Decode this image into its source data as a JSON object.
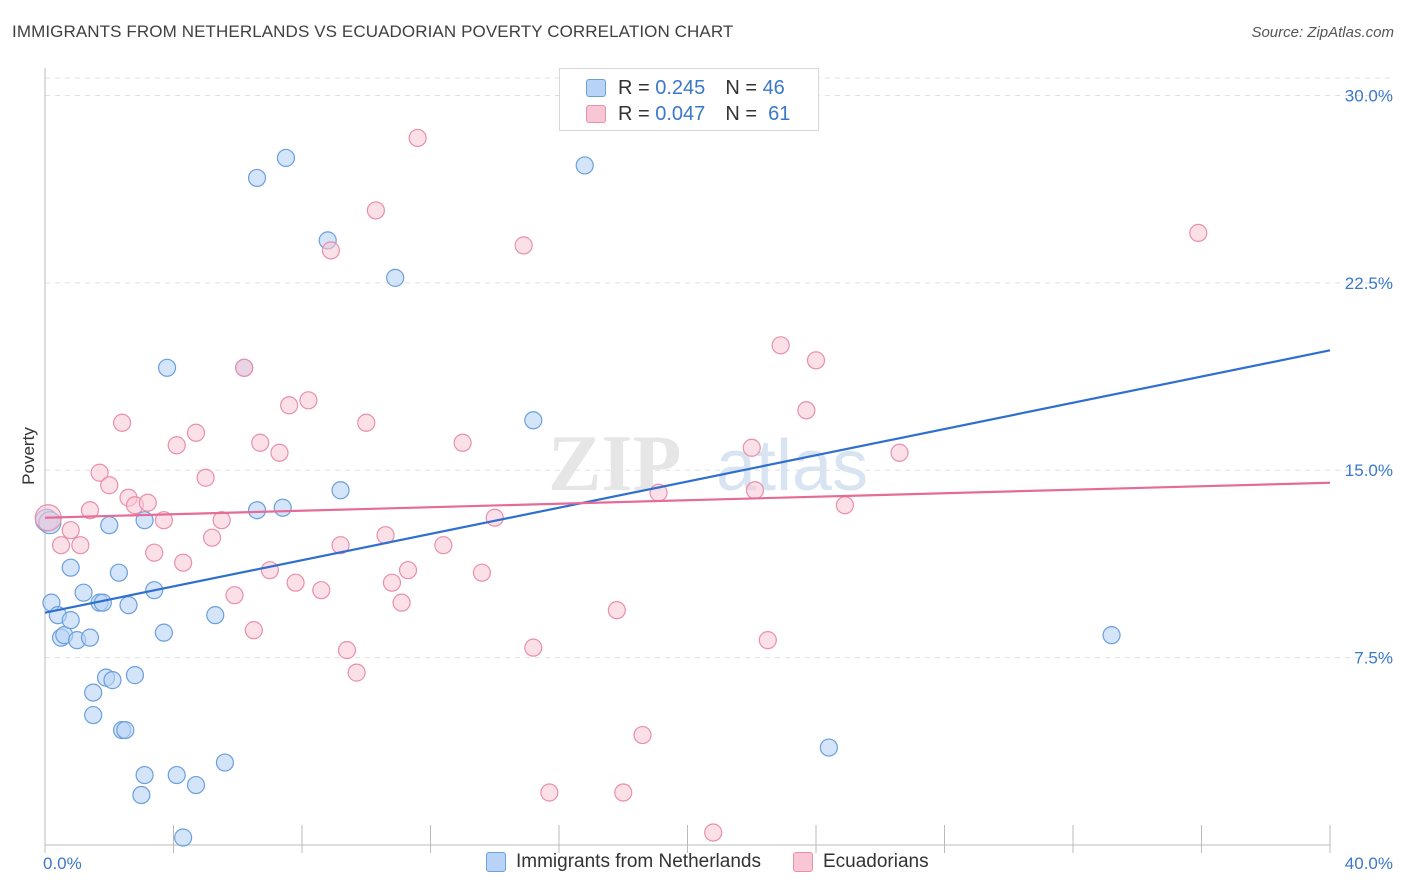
{
  "title": "IMMIGRANTS FROM NETHERLANDS VS ECUADORIAN POVERTY CORRELATION CHART",
  "source": "Source: ZipAtlas.com",
  "watermark": {
    "zip": "ZIP",
    "atlas": "atlas"
  },
  "legend": {
    "r_label": "R =",
    "n_label": "N =",
    "series": [
      {
        "r": "0.245",
        "n": "46"
      },
      {
        "r": "0.047",
        "n": "61"
      }
    ]
  },
  "colors": {
    "blue_fill": "#b8d3f5",
    "blue_stroke": "#6b9fdc",
    "blue_line": "#2f6fcf",
    "pink_fill": "#f9c6d6",
    "pink_stroke": "#e98fab",
    "pink_line": "#e46c97"
  },
  "chart_data": {
    "type": "scatter",
    "title": "IMMIGRANTS FROM NETHERLANDS VS ECUADORIAN POVERTY CORRELATION CHART",
    "xlabel": "",
    "ylabel": "Poverty",
    "xlim": [
      0,
      40
    ],
    "ylim": [
      0,
      30.7
    ],
    "x_tick_labels": [
      "0.0%",
      "40.0%"
    ],
    "y_ticks": [
      7.5,
      15.0,
      22.5,
      30.0
    ],
    "y_tick_labels": [
      "7.5%",
      "15.0%",
      "22.5%",
      "30.0%"
    ],
    "grid": true,
    "legend_position": "top-center",
    "series": [
      {
        "name": "Immigrants from Netherlands",
        "color": "#6b9fdc",
        "trend": {
          "x": [
            0,
            40
          ],
          "y": [
            9.3,
            19.8
          ]
        },
        "points": [
          [
            0.2,
            9.7
          ],
          [
            0.4,
            9.2
          ],
          [
            0.5,
            8.3
          ],
          [
            0.6,
            8.4
          ],
          [
            0.8,
            11.1
          ],
          [
            0.8,
            9.0
          ],
          [
            1.0,
            8.2
          ],
          [
            1.2,
            10.1
          ],
          [
            1.4,
            8.3
          ],
          [
            1.5,
            6.1
          ],
          [
            1.5,
            5.2
          ],
          [
            1.7,
            9.7
          ],
          [
            1.8,
            9.7
          ],
          [
            1.9,
            6.7
          ],
          [
            2.1,
            6.6
          ],
          [
            2.0,
            12.8
          ],
          [
            2.3,
            10.9
          ],
          [
            2.4,
            4.6
          ],
          [
            2.5,
            4.6
          ],
          [
            2.6,
            9.6
          ],
          [
            2.8,
            6.8
          ],
          [
            3.0,
            2.0
          ],
          [
            3.1,
            2.8
          ],
          [
            3.1,
            13.0
          ],
          [
            3.4,
            10.2
          ],
          [
            3.7,
            8.5
          ],
          [
            3.8,
            19.1
          ],
          [
            4.1,
            2.8
          ],
          [
            4.3,
            0.3
          ],
          [
            4.7,
            2.4
          ],
          [
            5.3,
            9.2
          ],
          [
            5.6,
            3.3
          ],
          [
            6.2,
            19.1
          ],
          [
            6.6,
            26.7
          ],
          [
            6.6,
            13.4
          ],
          [
            7.4,
            13.5
          ],
          [
            7.5,
            27.5
          ],
          [
            8.8,
            24.2
          ],
          [
            9.2,
            14.2
          ],
          [
            10.9,
            22.7
          ],
          [
            15.2,
            17.0
          ],
          [
            16.8,
            27.2
          ],
          [
            24.4,
            3.9
          ],
          [
            33.2,
            8.4
          ],
          [
            0.05,
            13.0
          ],
          [
            0.15,
            12.9
          ]
        ]
      },
      {
        "name": "Ecuadorians",
        "color": "#e98fab",
        "trend": {
          "x": [
            0,
            40
          ],
          "y": [
            13.1,
            14.5
          ]
        },
        "points": [
          [
            0.1,
            13.1
          ],
          [
            0.5,
            12.0
          ],
          [
            0.8,
            12.6
          ],
          [
            1.1,
            12.0
          ],
          [
            1.4,
            13.4
          ],
          [
            1.7,
            14.9
          ],
          [
            2.0,
            14.4
          ],
          [
            2.4,
            16.9
          ],
          [
            2.6,
            13.9
          ],
          [
            2.8,
            13.6
          ],
          [
            3.2,
            13.7
          ],
          [
            3.4,
            11.7
          ],
          [
            3.7,
            13.0
          ],
          [
            4.1,
            16.0
          ],
          [
            4.3,
            11.3
          ],
          [
            4.7,
            16.5
          ],
          [
            5.0,
            14.7
          ],
          [
            5.2,
            12.3
          ],
          [
            5.5,
            13.0
          ],
          [
            5.9,
            10.0
          ],
          [
            6.2,
            19.1
          ],
          [
            6.5,
            8.6
          ],
          [
            6.7,
            16.1
          ],
          [
            7.0,
            11.0
          ],
          [
            7.3,
            15.7
          ],
          [
            7.6,
            17.6
          ],
          [
            7.8,
            10.5
          ],
          [
            8.2,
            17.8
          ],
          [
            8.6,
            10.2
          ],
          [
            8.9,
            23.8
          ],
          [
            9.2,
            12.0
          ],
          [
            9.4,
            7.8
          ],
          [
            9.7,
            6.9
          ],
          [
            10.0,
            16.9
          ],
          [
            10.3,
            25.4
          ],
          [
            10.6,
            12.4
          ],
          [
            10.8,
            10.5
          ],
          [
            11.1,
            9.7
          ],
          [
            11.3,
            11.0
          ],
          [
            11.6,
            28.3
          ],
          [
            12.4,
            12.0
          ],
          [
            13.0,
            16.1
          ],
          [
            13.6,
            10.9
          ],
          [
            14.0,
            13.1
          ],
          [
            14.9,
            24.0
          ],
          [
            15.2,
            7.9
          ],
          [
            15.7,
            2.1
          ],
          [
            17.8,
            9.4
          ],
          [
            18.0,
            2.1
          ],
          [
            18.6,
            4.4
          ],
          [
            19.1,
            14.1
          ],
          [
            20.8,
            0.5
          ],
          [
            22.0,
            15.9
          ],
          [
            22.1,
            14.2
          ],
          [
            22.5,
            8.2
          ],
          [
            22.9,
            20.0
          ],
          [
            23.7,
            17.4
          ],
          [
            24.0,
            19.4
          ],
          [
            24.9,
            13.6
          ],
          [
            26.6,
            15.7
          ],
          [
            35.9,
            24.5
          ]
        ]
      }
    ]
  }
}
